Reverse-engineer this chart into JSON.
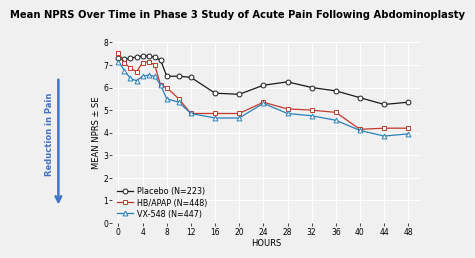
{
  "title": "Mean NPRS Over Time in Phase 3 Study of Acute Pain Following Abdominoplasty",
  "xlabel": "HOURS",
  "ylabel": "MEAN NPRS ± SE",
  "arrow_label": "Reduction in Pain",
  "ylim": [
    0,
    8
  ],
  "yticks": [
    0,
    1,
    2,
    3,
    4,
    5,
    6,
    7,
    8
  ],
  "xticks": [
    0,
    4,
    8,
    12,
    16,
    20,
    24,
    28,
    32,
    36,
    40,
    44,
    48
  ],
  "placebo": {
    "label": "Placebo (N=223)",
    "color": "#1a1a1a",
    "marker": "o",
    "x": [
      0,
      1,
      2,
      3,
      4,
      5,
      6,
      7,
      8,
      10,
      12,
      16,
      20,
      24,
      28,
      32,
      36,
      40,
      44,
      48
    ],
    "y": [
      7.3,
      7.25,
      7.3,
      7.35,
      7.4,
      7.4,
      7.35,
      7.2,
      6.5,
      6.5,
      6.45,
      5.75,
      5.7,
      6.1,
      6.25,
      6.0,
      5.85,
      5.55,
      5.25,
      5.35
    ]
  },
  "hbapap": {
    "label": "HB/APAP (N=448)",
    "color": "#c0392b",
    "marker": "s",
    "x": [
      0,
      1,
      2,
      3,
      4,
      5,
      6,
      7,
      8,
      10,
      12,
      16,
      20,
      24,
      28,
      32,
      36,
      40,
      44,
      48
    ],
    "y": [
      7.55,
      7.1,
      6.85,
      6.7,
      7.1,
      7.15,
      7.0,
      6.1,
      6.0,
      5.5,
      4.85,
      4.85,
      4.85,
      5.35,
      5.05,
      5.0,
      4.9,
      4.15,
      4.2,
      4.2
    ]
  },
  "vx548": {
    "label": "VX-548 (N=447)",
    "color": "#2980b9",
    "marker": "^",
    "x": [
      0,
      1,
      2,
      3,
      4,
      5,
      6,
      7,
      8,
      10,
      12,
      16,
      20,
      24,
      28,
      32,
      36,
      40,
      44,
      48
    ],
    "y": [
      7.15,
      6.75,
      6.4,
      6.3,
      6.5,
      6.55,
      6.5,
      6.1,
      5.5,
      5.35,
      4.85,
      4.65,
      4.65,
      5.3,
      4.85,
      4.75,
      4.55,
      4.1,
      3.85,
      3.95
    ]
  },
  "background_color": "#f0f0f0",
  "grid_color": "#ffffff",
  "title_fontsize": 7.2,
  "axis_fontsize": 6.0,
  "tick_fontsize": 5.5,
  "legend_fontsize": 5.8,
  "arrow_color": "#4472c4"
}
